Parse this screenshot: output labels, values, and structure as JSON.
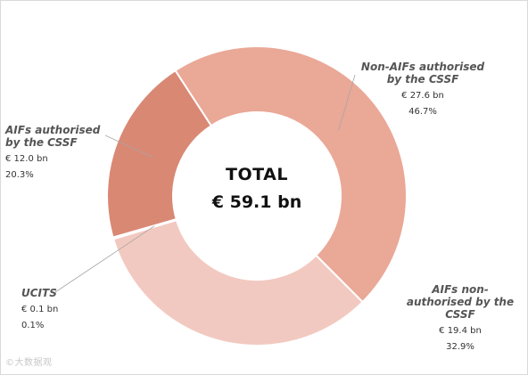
{
  "chart_data": {
    "type": "pie",
    "style": "donut",
    "center_label": {
      "title": "TOTAL",
      "value": "€ 59.1 bn"
    },
    "slices": [
      {
        "name": "Non-AIFs  authorised\nby the CSSF",
        "value": 27.6,
        "value_label": "€ 27.6 bn",
        "percent": 46.7,
        "percent_label": "46.7%",
        "color": "#eaa897"
      },
      {
        "name": "AIFs  non-\nauthorised by the\nCSSF",
        "value": 19.4,
        "value_label": "€ 19.4 bn",
        "percent": 32.9,
        "percent_label": "32.9%",
        "color": "#f2c9c0"
      },
      {
        "name": "UCITS",
        "value": 0.1,
        "value_label": "€ 0.1 bn",
        "percent": 0.1,
        "percent_label": "0.1%",
        "color": "#dc8a74"
      },
      {
        "name": "AIFs authorised\nby the CSSF",
        "value": 12.0,
        "value_label": "€ 12.0 bn",
        "percent": 20.3,
        "percent_label": "20.3%",
        "color": "#d98874"
      }
    ],
    "leader_line_color": "#a6a6a6",
    "legend": "none"
  },
  "watermark": "©大数据观"
}
